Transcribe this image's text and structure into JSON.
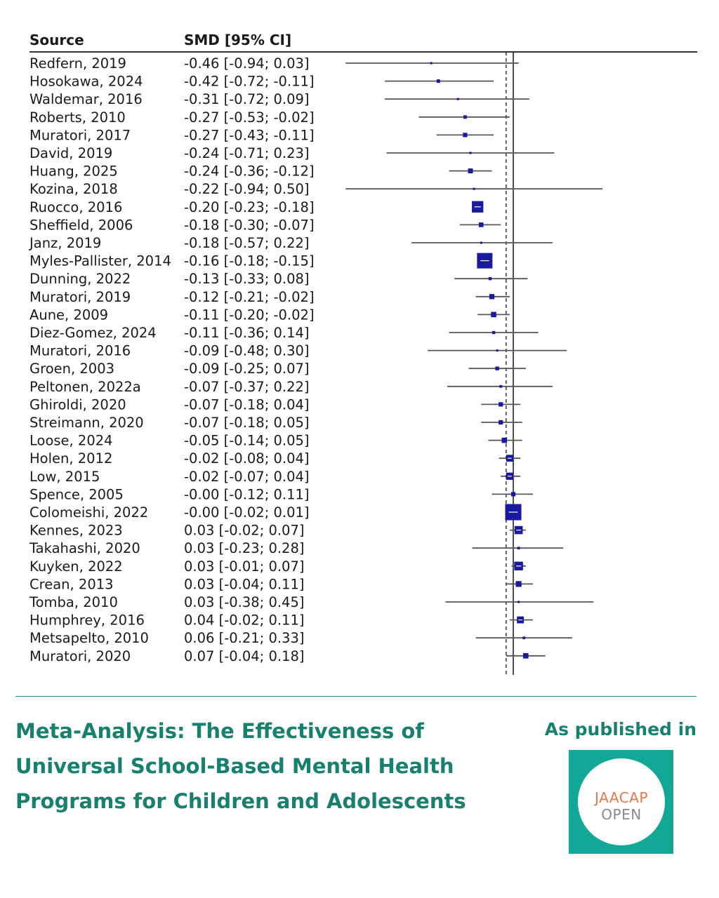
{
  "chart_data": {
    "type": "forest",
    "headers": {
      "source": "Source",
      "effect": "SMD [95% CI]"
    },
    "reference_line": 0,
    "pooled_estimate_line": -0.04,
    "studies": [
      {
        "source": "Redfern, 2019",
        "smd": -0.46,
        "lo": -0.94,
        "hi": 0.03,
        "label": "-0.46 [-0.94;  0.03]",
        "weight": 0.02
      },
      {
        "source": "Hosokawa, 2024",
        "smd": -0.42,
        "lo": -0.72,
        "hi": -0.11,
        "label": "-0.42 [-0.72; -0.11]",
        "weight": 0.05
      },
      {
        "source": "Waldemar, 2016",
        "smd": -0.31,
        "lo": -0.72,
        "hi": 0.09,
        "label": "-0.31 [-0.72;  0.09]",
        "weight": 0.02
      },
      {
        "source": "Roberts, 2010",
        "smd": -0.27,
        "lo": -0.53,
        "hi": -0.02,
        "label": "-0.27 [-0.53; -0.02]",
        "weight": 0.05
      },
      {
        "source": "Muratori, 2017",
        "smd": -0.27,
        "lo": -0.43,
        "hi": -0.11,
        "label": "-0.27 [-0.43; -0.11]",
        "weight": 0.08
      },
      {
        "source": "David, 2019",
        "smd": -0.24,
        "lo": -0.71,
        "hi": 0.23,
        "label": "-0.24 [-0.71;  0.23]",
        "weight": 0.02
      },
      {
        "source": "Huang, 2025",
        "smd": -0.24,
        "lo": -0.36,
        "hi": -0.12,
        "label": "-0.24 [-0.36; -0.12]",
        "weight": 0.1
      },
      {
        "source": "Kozina, 2018",
        "smd": -0.22,
        "lo": -0.94,
        "hi": 0.5,
        "label": "-0.22 [-0.94;  0.50]",
        "weight": 0.01
      },
      {
        "source": "Ruocco, 2016",
        "smd": -0.2,
        "lo": -0.23,
        "hi": -0.18,
        "label": "-0.20 [-0.23; -0.18]",
        "weight": 0.55
      },
      {
        "source": "Sheffield, 2006",
        "smd": -0.18,
        "lo": -0.3,
        "hi": -0.07,
        "label": "-0.18 [-0.30; -0.07]",
        "weight": 0.09
      },
      {
        "source": "Janz, 2019",
        "smd": -0.18,
        "lo": -0.57,
        "hi": 0.22,
        "label": "-0.18 [-0.57;  0.22]",
        "weight": 0.02
      },
      {
        "source": "Myles-Pallister, 2014",
        "smd": -0.16,
        "lo": -0.18,
        "hi": -0.15,
        "label": "-0.16 [-0.18; -0.15]",
        "weight": 1
      },
      {
        "source": "Dunning, 2022",
        "smd": -0.13,
        "lo": -0.33,
        "hi": 0.08,
        "label": "-0.13 [-0.33;  0.08]",
        "weight": 0.04
      },
      {
        "source": "Muratori, 2019",
        "smd": -0.12,
        "lo": -0.21,
        "hi": -0.02,
        "label": "-0.12 [-0.21; -0.02]",
        "weight": 0.11
      },
      {
        "source": "Aune, 2009",
        "smd": -0.11,
        "lo": -0.2,
        "hi": -0.02,
        "label": "-0.11 [-0.20; -0.02]",
        "weight": 0.12
      },
      {
        "source": "Diez-Gomez, 2024",
        "smd": -0.11,
        "lo": -0.36,
        "hi": 0.14,
        "label": "-0.11 [-0.36;  0.14]",
        "weight": 0.04
      },
      {
        "source": "Muratori, 2016",
        "smd": -0.09,
        "lo": -0.48,
        "hi": 0.3,
        "label": "-0.09 [-0.48;  0.30]",
        "weight": 0.02
      },
      {
        "source": "Groen, 2003",
        "smd": -0.09,
        "lo": -0.25,
        "hi": 0.07,
        "label": "-0.09 [-0.25;  0.07]",
        "weight": 0.06
      },
      {
        "source": "Peltonen, 2022a",
        "smd": -0.07,
        "lo": -0.37,
        "hi": 0.22,
        "label": "-0.07 [-0.37;  0.22]",
        "weight": 0.03
      },
      {
        "source": "Ghiroldi, 2020",
        "smd": -0.07,
        "lo": -0.18,
        "hi": 0.04,
        "label": "-0.07 [-0.18;  0.04]",
        "weight": 0.08
      },
      {
        "source": "Streimann, 2020",
        "smd": -0.07,
        "lo": -0.18,
        "hi": 0.05,
        "label": "-0.07 [-0.18;  0.05]",
        "weight": 0.08
      },
      {
        "source": "Loose, 2024",
        "smd": -0.05,
        "lo": -0.14,
        "hi": 0.05,
        "label": "-0.05 [-0.14;  0.05]",
        "weight": 0.12
      },
      {
        "source": "Holen, 2012",
        "smd": -0.02,
        "lo": -0.08,
        "hi": 0.04,
        "label": "-0.02 [-0.08;  0.04]",
        "weight": 0.2
      },
      {
        "source": "Low, 2015",
        "smd": -0.02,
        "lo": -0.07,
        "hi": 0.04,
        "label": "-0.02 [-0.07;  0.04]",
        "weight": 0.22
      },
      {
        "source": "Spence, 2005",
        "smd": -0.0,
        "lo": -0.12,
        "hi": 0.11,
        "label": "-0.00 [-0.12;  0.11]",
        "weight": 0.08
      },
      {
        "source": "Colomeishi, 2022",
        "smd": -0.0,
        "lo": -0.02,
        "hi": 0.01,
        "label": "-0.00 [-0.02;  0.01]",
        "weight": 1.1
      },
      {
        "source": "Kennes, 2023",
        "smd": 0.03,
        "lo": -0.02,
        "hi": 0.07,
        "label": " 0.03 [-0.02;  0.07]",
        "weight": 0.28
      },
      {
        "source": "Takahashi, 2020",
        "smd": 0.03,
        "lo": -0.23,
        "hi": 0.28,
        "label": " 0.03 [-0.23;  0.28]",
        "weight": 0.03
      },
      {
        "source": "Kuyken, 2022",
        "smd": 0.03,
        "lo": -0.01,
        "hi": 0.07,
        "label": " 0.03 [-0.01;  0.07]",
        "weight": 0.32
      },
      {
        "source": "Crean, 2013",
        "smd": 0.03,
        "lo": -0.04,
        "hi": 0.11,
        "label": " 0.03 [-0.04;  0.11]",
        "weight": 0.14
      },
      {
        "source": "Tomba, 2010",
        "smd": 0.03,
        "lo": -0.38,
        "hi": 0.45,
        "label": " 0.03 [-0.38;  0.45]",
        "weight": 0.02
      },
      {
        "source": "Humphrey, 2016",
        "smd": 0.04,
        "lo": -0.02,
        "hi": 0.11,
        "label": " 0.04 [-0.02;  0.11]",
        "weight": 0.2
      },
      {
        "source": "Metsapelto, 2010",
        "smd": 0.06,
        "lo": -0.21,
        "hi": 0.33,
        "label": " 0.06 [-0.21;  0.33]",
        "weight": 0.03
      },
      {
        "source": "Muratori, 2020",
        "smd": 0.07,
        "lo": -0.04,
        "hi": 0.18,
        "label": " 0.07 [-0.04;  0.18]",
        "weight": 0.12
      }
    ]
  },
  "footer": {
    "title_lines": [
      "Meta-Analysis: The Effectiveness of",
      "Universal School-Based Mental Health",
      "Programs for Children and Adolescents"
    ],
    "published_label": "As published in",
    "logo_lines": [
      "JAACAP",
      "OPEN"
    ],
    "colors": {
      "accent": "#17806f",
      "logo_bg": "#13a895",
      "logo_orange": "#e07a48",
      "marker": "#1a1aa0"
    }
  }
}
